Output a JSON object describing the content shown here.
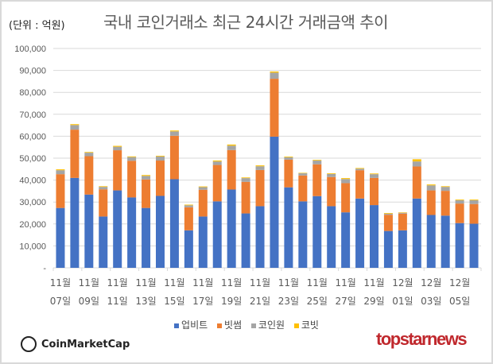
{
  "header": {
    "unit": "(단위 : 억원)",
    "title": "국내 코인거래소 최근 24시간 거래금액 추이"
  },
  "chart_data": {
    "type": "bar",
    "stacked": true,
    "title": "국내 코인거래소 최근 24시간 거래금액 추이",
    "ylabel": "(단위 : 억원)",
    "ylim": [
      0,
      100000
    ],
    "yticks": [
      "-",
      "10,000",
      "20,000",
      "30,000",
      "40,000",
      "50,000",
      "60,000",
      "70,000",
      "80,000",
      "90,000",
      "100,000"
    ],
    "grid": true,
    "legend_position": "bottom",
    "categories": [
      "11월 07일",
      "11월 08일",
      "11월 09일",
      "11월 10일",
      "11월 11일",
      "11월 12일",
      "11월 13일",
      "11월 14일",
      "11월 15일",
      "11월 16일",
      "11월 17일",
      "11월 18일",
      "11월 19일",
      "11월 20일",
      "11월 21일",
      "11월 22일",
      "11월 23일",
      "11월 24일",
      "11월 25일",
      "11월 26일",
      "11월 27일",
      "11월 28일",
      "11월 29일",
      "11월 30일",
      "12월 01일",
      "12월 02일",
      "12월 03일",
      "12월 04일",
      "12월 05일",
      "12월 06일"
    ],
    "tick_labels": [
      [
        "11월",
        "07일"
      ],
      [
        "11월",
        "09일"
      ],
      [
        "11월",
        "11일"
      ],
      [
        "11월",
        "13일"
      ],
      [
        "11월",
        "15일"
      ],
      [
        "11월",
        "17일"
      ],
      [
        "11월",
        "19일"
      ],
      [
        "11월",
        "21일"
      ],
      [
        "11월",
        "23일"
      ],
      [
        "11월",
        "25일"
      ],
      [
        "11월",
        "27일"
      ],
      [
        "11월",
        "29일"
      ],
      [
        "12월",
        "01일"
      ],
      [
        "12월",
        "03일"
      ],
      [
        "12월",
        "05일"
      ]
    ],
    "series": [
      {
        "name": "업비트",
        "color": "#4472c4",
        "values": [
          27300,
          41000,
          33400,
          23400,
          35300,
          32100,
          27300,
          32800,
          40400,
          17100,
          23400,
          30300,
          35700,
          24800,
          28100,
          59800,
          36700,
          30300,
          32700,
          28100,
          25300,
          31600,
          28600,
          16800,
          17100,
          31600,
          24100,
          23800,
          20400,
          20100
        ]
      },
      {
        "name": "빗썸",
        "color": "#ed7d31",
        "values": [
          15400,
          22000,
          17500,
          12400,
          18300,
          16700,
          13000,
          16100,
          19800,
          10500,
          12200,
          16600,
          18000,
          14400,
          16500,
          26400,
          12600,
          11800,
          14500,
          13300,
          13300,
          12900,
          12400,
          7400,
          7600,
          14600,
          11200,
          11300,
          8900,
          9000
        ]
      },
      {
        "name": "코인원",
        "color": "#a5a5a5",
        "values": [
          1800,
          2100,
          1600,
          1100,
          1600,
          1700,
          1600,
          1900,
          2000,
          900,
          1200,
          1600,
          2000,
          1700,
          1700,
          2800,
          1100,
          1000,
          1700,
          1400,
          1900,
          700,
          1700,
          500,
          400,
          2300,
          2300,
          1800,
          1500,
          1700
        ]
      },
      {
        "name": "코빗",
        "color": "#ffc000",
        "values": [
          400,
          400,
          300,
          300,
          400,
          300,
          400,
          300,
          400,
          300,
          300,
          400,
          500,
          300,
          400,
          500,
          300,
          200,
          300,
          300,
          400,
          300,
          300,
          300,
          200,
          1000,
          400,
          300,
          300,
          300
        ]
      }
    ]
  },
  "footer": {
    "source_logo": "CoinMarketCap",
    "brand_logo": "topstarnews"
  }
}
